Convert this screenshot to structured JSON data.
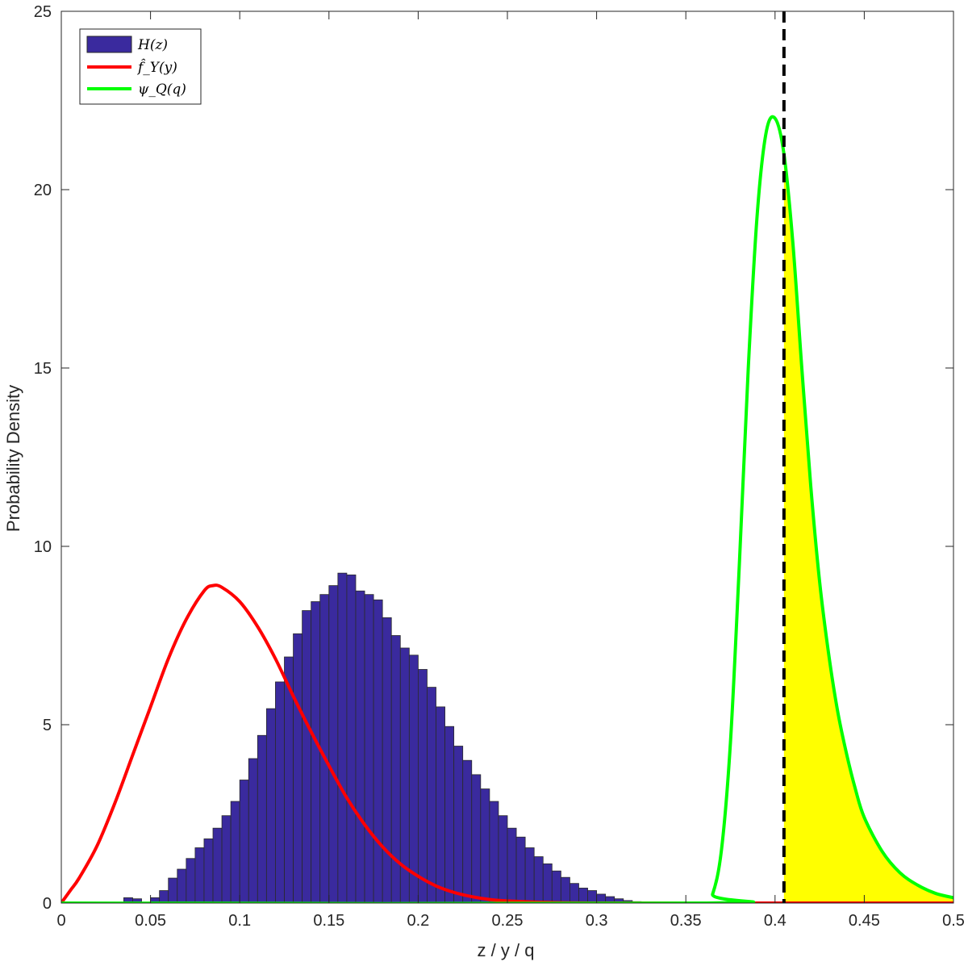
{
  "chart_data": {
    "type": "bar",
    "xlabel": "z / y / q",
    "ylabel": "Probability Density",
    "xlim": [
      0,
      0.5
    ],
    "ylim": [
      0,
      25
    ],
    "x_ticks": [
      0,
      0.05,
      0.1,
      0.15,
      0.2,
      0.25,
      0.3,
      0.35,
      0.4,
      0.45,
      0.5
    ],
    "x_tick_labels": [
      "0",
      "0.05",
      "0.1",
      "0.15",
      "0.2",
      "0.25",
      "0.3",
      "0.35",
      "0.4",
      "0.45",
      "0.5"
    ],
    "y_ticks": [
      0,
      5,
      10,
      15,
      20,
      25
    ],
    "y_tick_labels": [
      "0",
      "5",
      "10",
      "15",
      "20",
      "25"
    ],
    "grid": false,
    "legend": {
      "placement": "top-left",
      "entries": [
        "H(z)",
        "f̂_Y(y)",
        "ψ_Q(q)"
      ]
    },
    "histogram": {
      "name": "H(z)",
      "color": "#3a2a9e",
      "edge_color": "#2a2a2a",
      "bin_width": 0.005,
      "bin_starts": [
        0.035,
        0.04,
        0.045,
        0.05,
        0.055,
        0.06,
        0.065,
        0.07,
        0.075,
        0.08,
        0.085,
        0.09,
        0.095,
        0.1,
        0.105,
        0.11,
        0.115,
        0.12,
        0.125,
        0.13,
        0.135,
        0.14,
        0.145,
        0.15,
        0.155,
        0.16,
        0.165,
        0.17,
        0.175,
        0.18,
        0.185,
        0.19,
        0.195,
        0.2,
        0.205,
        0.21,
        0.215,
        0.22,
        0.225,
        0.23,
        0.235,
        0.24,
        0.245,
        0.25,
        0.255,
        0.26,
        0.265,
        0.27,
        0.275,
        0.28,
        0.285,
        0.29,
        0.295,
        0.3,
        0.305,
        0.31,
        0.315,
        0.32
      ],
      "values": [
        0.15,
        0.12,
        0.0,
        0.15,
        0.35,
        0.7,
        0.95,
        1.25,
        1.55,
        1.8,
        2.1,
        2.45,
        2.85,
        3.45,
        4.05,
        4.7,
        5.45,
        6.2,
        6.9,
        7.55,
        8.2,
        8.45,
        8.65,
        8.9,
        9.25,
        9.2,
        8.75,
        8.65,
        8.5,
        8.0,
        7.5,
        7.15,
        6.95,
        6.55,
        6.05,
        5.5,
        4.95,
        4.4,
        4.0,
        3.6,
        3.2,
        2.85,
        2.45,
        2.1,
        1.85,
        1.55,
        1.3,
        1.1,
        0.9,
        0.72,
        0.55,
        0.42,
        0.35,
        0.25,
        0.18,
        0.12,
        0.07,
        0.04
      ]
    },
    "series": [
      {
        "name": "f̂_Y(y)",
        "type": "line",
        "color": "#ff0000",
        "x": [
          0,
          0.005,
          0.01,
          0.02,
          0.03,
          0.04,
          0.05,
          0.06,
          0.07,
          0.08,
          0.085,
          0.09,
          0.1,
          0.11,
          0.12,
          0.13,
          0.14,
          0.15,
          0.16,
          0.17,
          0.18,
          0.19,
          0.2,
          0.21,
          0.22,
          0.23,
          0.24,
          0.25,
          0.27,
          0.3,
          0.35,
          0.4,
          0.5
        ],
        "y": [
          0.0,
          0.35,
          0.7,
          1.6,
          2.8,
          4.15,
          5.5,
          6.85,
          7.95,
          8.75,
          8.9,
          8.85,
          8.45,
          7.75,
          6.85,
          5.8,
          4.8,
          3.85,
          2.95,
          2.2,
          1.58,
          1.1,
          0.75,
          0.48,
          0.3,
          0.18,
          0.1,
          0.06,
          0.02,
          0.0,
          0.0,
          0.0,
          0.0
        ]
      },
      {
        "name": "ψ_Q(q)",
        "type": "line",
        "color": "#00ff00",
        "x": [
          0,
          0.36,
          0.365,
          0.37,
          0.375,
          0.38,
          0.385,
          0.39,
          0.395,
          0.4,
          0.405,
          0.41,
          0.415,
          0.42,
          0.425,
          0.43,
          0.435,
          0.44,
          0.445,
          0.45,
          0.46,
          0.47,
          0.48,
          0.49,
          0.5
        ],
        "y": [
          0.0,
          0.0,
          0.25,
          1.5,
          4.5,
          9.5,
          15.0,
          19.3,
          21.6,
          22.0,
          21.0,
          18.5,
          15.0,
          11.7,
          9.0,
          7.0,
          5.4,
          4.2,
          3.2,
          2.4,
          1.45,
          0.85,
          0.5,
          0.27,
          0.15
        ]
      }
    ],
    "vertical_line": {
      "x": 0.405,
      "style": "dashed",
      "color": "#000000"
    },
    "shaded_region": {
      "from_x": 0.405,
      "to_x": 0.5,
      "under": "ψ_Q(q)",
      "color": "#ffff00"
    }
  }
}
